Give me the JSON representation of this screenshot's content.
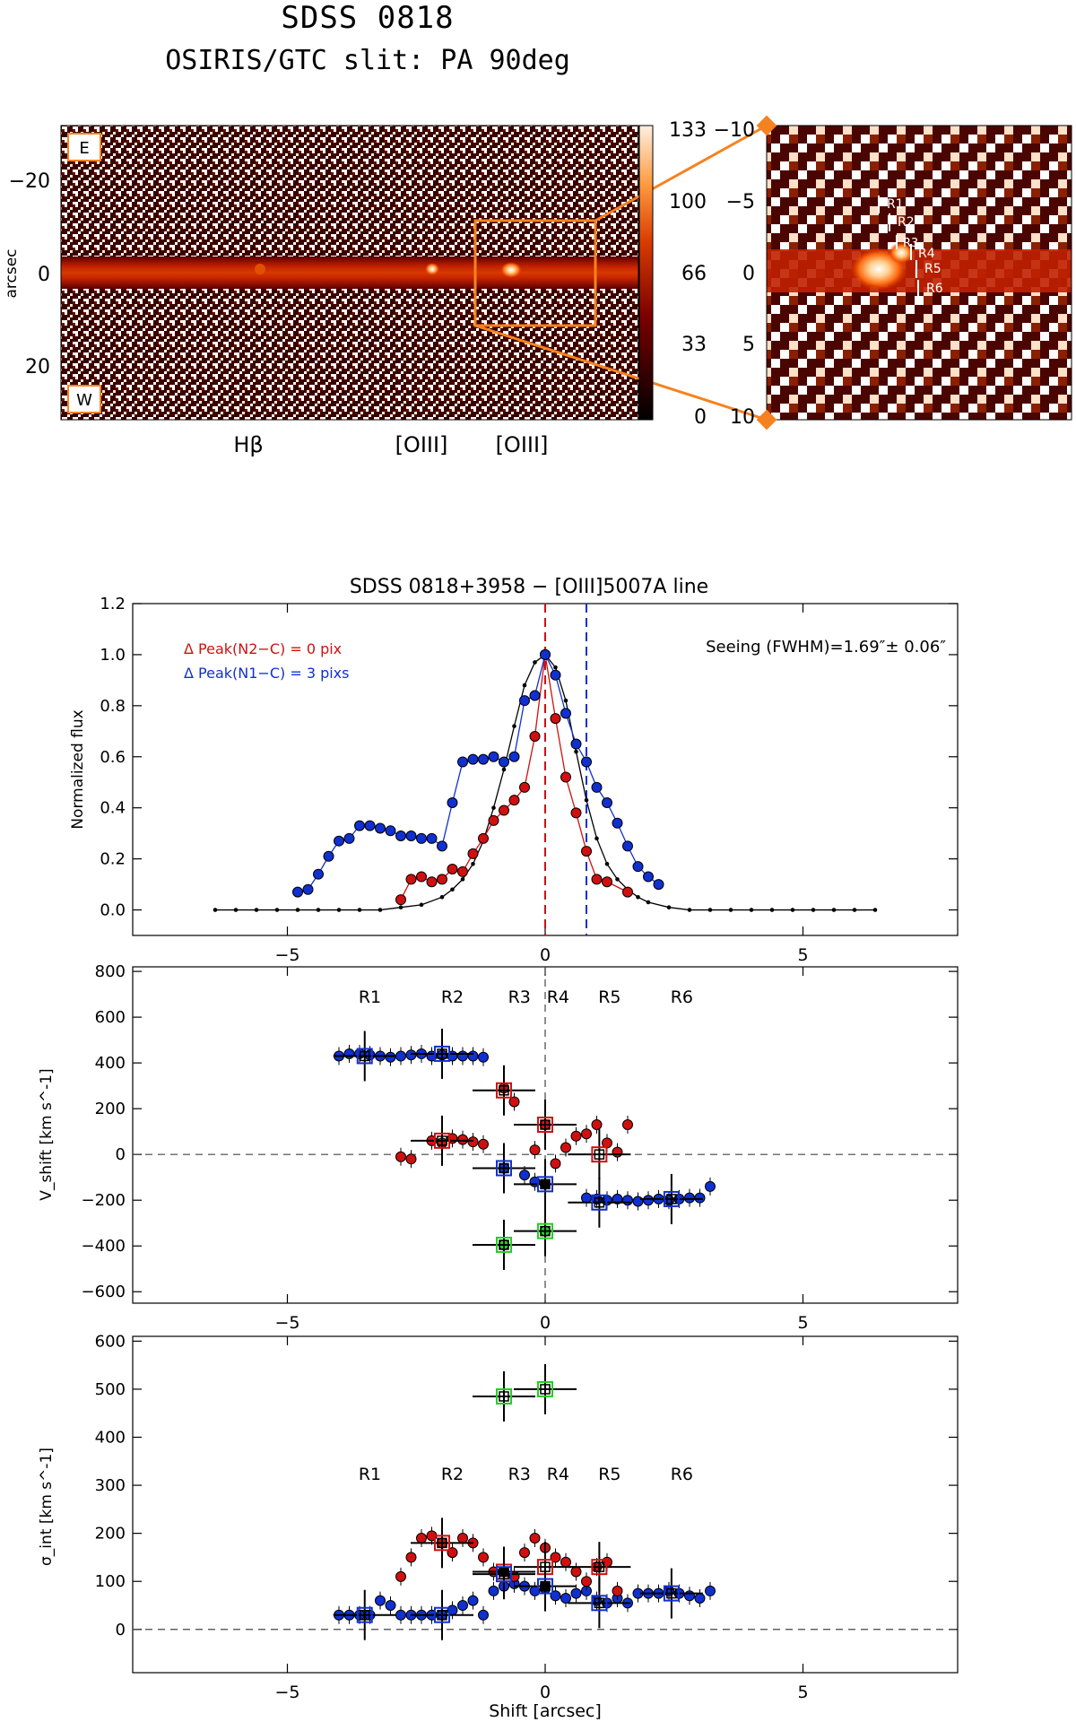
{
  "header": {
    "title": "SDSS 0818",
    "subtitle": "OSIRIS/GTC slit: PA 90deg"
  },
  "colors": {
    "orange": "#f58220",
    "red": "#d01010",
    "blue": "#1030d0",
    "green": "#20d020",
    "black": "#000000"
  },
  "spectrum_panel": {
    "orientation_labels": [
      "E",
      "W"
    ],
    "ylabel": "arcsec",
    "yticks": [
      "−20",
      "0",
      "20"
    ],
    "colorbar_ticks": [
      "133",
      "100",
      "66",
      "33",
      "0"
    ],
    "line_labels": [
      "Hβ",
      "[OIII]",
      "[OIII]"
    ],
    "zoom_yticks": [
      "−10",
      "−5",
      "0",
      "5",
      "10"
    ],
    "region_labels": [
      "R1",
      "R2",
      "R3",
      "R4",
      "R5",
      "R6"
    ]
  },
  "chart_data": [
    {
      "type": "line",
      "title": "SDSS 0818+3958 − [OIII]5007A line",
      "ylabel": "Normalized flux",
      "xlabel": "",
      "xlim": [
        -8,
        8
      ],
      "ylim": [
        -0.1,
        1.2
      ],
      "xticks": [
        "−5",
        "0",
        "5"
      ],
      "yticks": [
        "0.0",
        "0.2",
        "0.4",
        "0.6",
        "0.8",
        "1.0",
        "1.2"
      ],
      "annotations": [
        "Δ Peak(N2−C) = 0 pix",
        "Δ Peak(N1−C) = 3 pixs",
        "Seeing (FWHM)=1.69″± 0.06″"
      ],
      "vlines": [
        {
          "x": 0,
          "color": "red"
        },
        {
          "x": 0.8,
          "color": "blue"
        }
      ],
      "series": [
        {
          "name": "PSF (black)",
          "x": [
            -6.4,
            -6.0,
            -5.6,
            -5.2,
            -4.8,
            -4.4,
            -4.0,
            -3.6,
            -3.2,
            -2.8,
            -2.4,
            -2.0,
            -1.8,
            -1.6,
            -1.4,
            -1.2,
            -1.0,
            -0.8,
            -0.6,
            -0.4,
            -0.2,
            0,
            0.2,
            0.4,
            0.6,
            0.8,
            1.0,
            1.2,
            1.4,
            1.6,
            1.8,
            2.0,
            2.4,
            2.8,
            3.2,
            3.6,
            4.0,
            4.4,
            4.8,
            5.2,
            5.6,
            6.0,
            6.4
          ],
          "values": [
            0,
            0,
            0,
            0,
            0,
            0,
            0,
            0,
            0,
            0.01,
            0.02,
            0.05,
            0.08,
            0.12,
            0.18,
            0.27,
            0.4,
            0.55,
            0.72,
            0.88,
            0.97,
            1.0,
            0.95,
            0.82,
            0.62,
            0.43,
            0.28,
            0.18,
            0.12,
            0.08,
            0.05,
            0.03,
            0.01,
            0,
            0,
            0,
            0,
            0,
            0,
            0,
            0,
            0,
            0
          ]
        },
        {
          "name": "N2 (red)",
          "x": [
            -2.8,
            -2.6,
            -2.4,
            -2.2,
            -2.0,
            -1.8,
            -1.6,
            -1.4,
            -1.2,
            -1.0,
            -0.8,
            -0.6,
            -0.4,
            -0.2,
            0,
            0.2,
            0.4,
            0.6,
            0.8,
            1.0,
            1.2,
            1.6
          ],
          "values": [
            0.04,
            0.12,
            0.13,
            0.11,
            0.12,
            0.16,
            0.15,
            0.22,
            0.28,
            0.35,
            0.39,
            0.43,
            0.48,
            0.68,
            1.0,
            0.75,
            0.52,
            0.38,
            0.23,
            0.12,
            0.11,
            0.07
          ]
        },
        {
          "name": "N1 (blue)",
          "x": [
            -4.8,
            -4.6,
            -4.4,
            -4.2,
            -4.0,
            -3.8,
            -3.6,
            -3.4,
            -3.2,
            -3.0,
            -2.8,
            -2.6,
            -2.4,
            -2.2,
            -2.0,
            -1.8,
            -1.6,
            -1.4,
            -1.2,
            -1.0,
            -0.8,
            -0.6,
            -0.4,
            -0.2,
            0,
            0.2,
            0.4,
            0.6,
            0.8,
            1.0,
            1.2,
            1.4,
            1.6,
            1.8,
            2.0,
            2.2
          ],
          "values": [
            0.07,
            0.08,
            0.14,
            0.21,
            0.27,
            0.28,
            0.33,
            0.33,
            0.32,
            0.31,
            0.29,
            0.29,
            0.28,
            0.28,
            0.25,
            0.42,
            0.58,
            0.59,
            0.59,
            0.6,
            0.58,
            0.6,
            0.82,
            0.84,
            1.0,
            0.92,
            0.77,
            0.65,
            0.58,
            0.48,
            0.42,
            0.34,
            0.25,
            0.17,
            0.13,
            0.1
          ]
        }
      ]
    },
    {
      "type": "scatter",
      "ylabel": "V_shift [km s^-1]",
      "xlim": [
        -8,
        8
      ],
      "ylim": [
        -650,
        820
      ],
      "xticks": [
        "−5",
        "0",
        "5"
      ],
      "yticks": [
        "−600",
        "−400",
        "−200",
        "0",
        "200",
        "400",
        "600",
        "800"
      ],
      "region_labels": [
        {
          "label": "R1",
          "x": -3.4
        },
        {
          "label": "R2",
          "x": -1.8
        },
        {
          "label": "R3",
          "x": -0.5
        },
        {
          "label": "R4",
          "x": 0.25
        },
        {
          "label": "R5",
          "x": 1.25
        },
        {
          "label": "R6",
          "x": 2.65
        }
      ],
      "series": [
        {
          "name": "blue",
          "x": [
            -4.0,
            -3.8,
            -3.6,
            -3.4,
            -3.2,
            -3.0,
            -2.8,
            -2.6,
            -2.4,
            -2.2,
            -2.0,
            -1.8,
            -1.6,
            -1.4,
            -1.2,
            -0.8,
            -0.4,
            -0.2,
            0.8,
            1.0,
            1.2,
            1.4,
            1.6,
            1.8,
            2.0,
            2.2,
            2.4,
            2.6,
            2.8,
            3.0,
            3.2
          ],
          "values": [
            430,
            440,
            440,
            435,
            430,
            425,
            430,
            435,
            440,
            430,
            435,
            430,
            430,
            430,
            425,
            -60,
            -90,
            -120,
            -190,
            -195,
            -200,
            -195,
            -200,
            -205,
            -200,
            -195,
            -200,
            -195,
            -190,
            -190,
            -140
          ]
        },
        {
          "name": "red",
          "x": [
            -0.8,
            -0.6,
            -2.8,
            -2.6,
            -2.2,
            -2.0,
            -1.8,
            -1.6,
            -1.4,
            -1.2,
            -0.2,
            0,
            0.2,
            0.4,
            0.6,
            0.8,
            1.0,
            1.2,
            1.4,
            1.6
          ],
          "values": [
            290,
            230,
            -10,
            -20,
            60,
            50,
            70,
            65,
            55,
            45,
            20,
            130,
            -40,
            30,
            80,
            90,
            130,
            50,
            10,
            130
          ]
        },
        {
          "name": "green",
          "x": [
            -0.8,
            0
          ],
          "values": [
            -395,
            -335
          ]
        },
        {
          "name": "black",
          "x": [
            0
          ],
          "values": [
            -130
          ]
        }
      ],
      "boxes": [
        {
          "x": -3.5,
          "y": 430,
          "color": "blue"
        },
        {
          "x": -2.0,
          "y": 440,
          "color": "blue"
        },
        {
          "x": -0.8,
          "y": 280,
          "color": "red"
        },
        {
          "x": -2.0,
          "y": 60,
          "color": "red"
        },
        {
          "x": 0,
          "y": 130,
          "color": "red"
        },
        {
          "x": 1.05,
          "y": 0,
          "color": "red"
        },
        {
          "x": -0.8,
          "y": -60,
          "color": "blue"
        },
        {
          "x": 0,
          "y": -130,
          "color": "blue"
        },
        {
          "x": 1.05,
          "y": -210,
          "color": "blue"
        },
        {
          "x": 2.45,
          "y": -195,
          "color": "blue"
        },
        {
          "x": -0.8,
          "y": -395,
          "color": "green"
        },
        {
          "x": 0,
          "y": -335,
          "color": "green"
        }
      ]
    },
    {
      "type": "scatter",
      "ylabel": "σ_int [km s^-1]",
      "xlabel": "Shift [arcsec]",
      "xlim": [
        -8,
        8
      ],
      "ylim": [
        -90,
        610
      ],
      "xticks": [
        "−5",
        "0",
        "5"
      ],
      "yticks": [
        "0",
        "100",
        "200",
        "300",
        "400",
        "500",
        "600"
      ],
      "region_labels": [
        {
          "label": "R1",
          "x": -3.4
        },
        {
          "label": "R2",
          "x": -1.8
        },
        {
          "label": "R3",
          "x": -0.5
        },
        {
          "label": "R4",
          "x": 0.25
        },
        {
          "label": "R5",
          "x": 1.25
        },
        {
          "label": "R6",
          "x": 2.65
        }
      ],
      "series": [
        {
          "name": "blue",
          "x": [
            -4.0,
            -3.8,
            -3.6,
            -3.4,
            -3.2,
            -3.0,
            -2.8,
            -2.6,
            -2.4,
            -2.2,
            -2.0,
            -1.8,
            -1.6,
            -1.4,
            -1.2,
            -1.0,
            -0.8,
            -0.6,
            -0.4,
            -0.2,
            0,
            0.2,
            0.4,
            0.6,
            0.8,
            1.0,
            1.2,
            1.4,
            1.6,
            1.8,
            2.0,
            2.2,
            2.4,
            2.6,
            2.8,
            3.0,
            3.2
          ],
          "values": [
            30,
            30,
            30,
            30,
            60,
            50,
            30,
            30,
            30,
            30,
            30,
            40,
            50,
            60,
            30,
            80,
            90,
            95,
            90,
            80,
            85,
            70,
            65,
            75,
            80,
            60,
            55,
            65,
            55,
            75,
            75,
            75,
            80,
            75,
            70,
            65,
            80
          ]
        },
        {
          "name": "red",
          "x": [
            -2.8,
            -2.6,
            -2.4,
            -2.2,
            -2.0,
            -1.8,
            -1.6,
            -1.4,
            -1.2,
            -1.0,
            -0.8,
            -0.6,
            -0.4,
            -0.2,
            0,
            0.2,
            0.4,
            0.6,
            0.8,
            1.0,
            1.2,
            1.4
          ],
          "values": [
            110,
            150,
            190,
            195,
            180,
            160,
            190,
            180,
            150,
            120,
            120,
            110,
            160,
            190,
            170,
            150,
            140,
            120,
            100,
            130,
            140,
            80
          ]
        },
        {
          "name": "black",
          "x": [
            -0.8,
            0
          ],
          "values": [
            120,
            90
          ]
        }
      ],
      "boxes": [
        {
          "x": -3.5,
          "y": 30,
          "color": "blue"
        },
        {
          "x": -2.0,
          "y": 30,
          "color": "blue"
        },
        {
          "x": -2.0,
          "y": 180,
          "color": "red"
        },
        {
          "x": -0.8,
          "y": 120,
          "color": "red"
        },
        {
          "x": -0.8,
          "y": 115,
          "color": "blue"
        },
        {
          "x": 0,
          "y": 130,
          "color": "red"
        },
        {
          "x": 0,
          "y": 90,
          "color": "blue"
        },
        {
          "x": 1.05,
          "y": 130,
          "color": "red"
        },
        {
          "x": 1.05,
          "y": 55,
          "color": "blue"
        },
        {
          "x": 2.45,
          "y": 75,
          "color": "blue"
        },
        {
          "x": -0.8,
          "y": 485,
          "color": "green"
        },
        {
          "x": 0,
          "y": 500,
          "color": "green"
        }
      ]
    }
  ]
}
